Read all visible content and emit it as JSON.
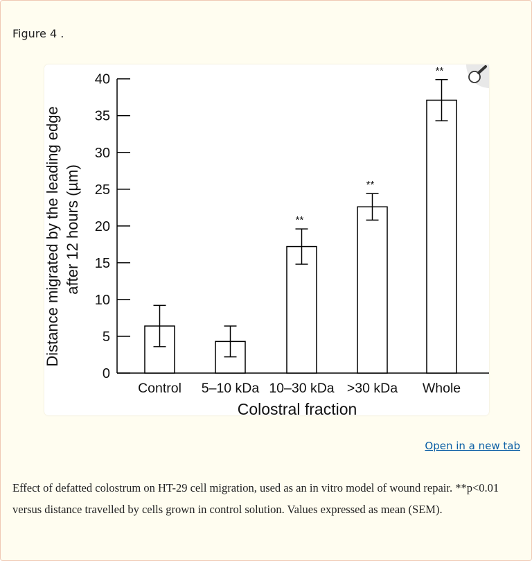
{
  "figure": {
    "title": "Figure 4 .",
    "open_link": "Open in a new tab",
    "caption": "Effect of defatted colostrum on HT-29 cell migration, used as an in vitro model of wound repair. **p<0.01 versus distance travelled by cells grown in control solution. Values expressed as mean (SEM).",
    "zoom_icon": "magnifier-icon"
  },
  "chart_data": {
    "type": "bar",
    "title": "",
    "ylabel_lines": [
      "Distance migrated by the leading edge",
      "after 12 hours (µm)"
    ],
    "xlabel": "Colostral fraction",
    "categories": [
      "Control",
      "5–10 kDa",
      "10–30 kDa",
      ">30 kDa",
      "Whole"
    ],
    "values": [
      6.4,
      4.3,
      17.2,
      22.6,
      37.1
    ],
    "errors": [
      2.8,
      2.1,
      2.4,
      1.8,
      2.8
    ],
    "significance": [
      "",
      "",
      "**",
      "**",
      "**"
    ],
    "ylim": [
      0,
      40
    ],
    "yticks": [
      "0",
      "5",
      "10",
      "15",
      "20",
      "25",
      "30",
      "35",
      "40"
    ],
    "grid": false,
    "bar_fill": "#ffffff",
    "bar_stroke": "#000000"
  }
}
